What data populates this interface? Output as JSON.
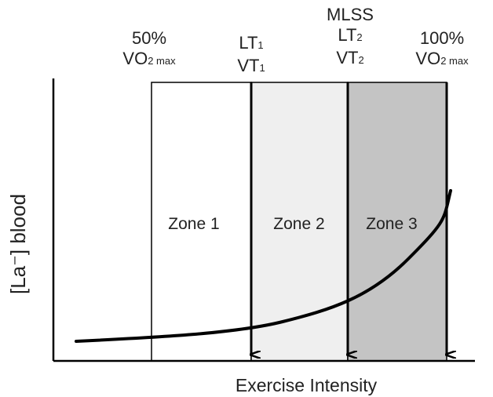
{
  "ylabel": "[La⁻] blood",
  "xlabel": "Exercise Intensity",
  "zones": [
    {
      "label": "Zone 1",
      "fill": "#ffffff"
    },
    {
      "label": "Zone 2",
      "fill": "#efefef"
    },
    {
      "label": "Zone 3",
      "fill": "#c4c4c4"
    }
  ],
  "markers": {
    "vo2_50": {
      "line1": "50%",
      "main": "VO",
      "sub": "2 max"
    },
    "lt1": {
      "lt": "LT",
      "lt_sub": "1",
      "vt": "VT",
      "vt_sub": "1"
    },
    "lt2": {
      "mlss": "MLSS",
      "lt": "LT",
      "lt_sub": "2",
      "vt": "VT",
      "vt_sub": "2"
    },
    "vo2_100": {
      "line1": "100%",
      "main": "VO",
      "sub": "2 max"
    }
  },
  "colors": {
    "axis": "#000000",
    "curve": "#000000",
    "zone_border": "#000000"
  }
}
